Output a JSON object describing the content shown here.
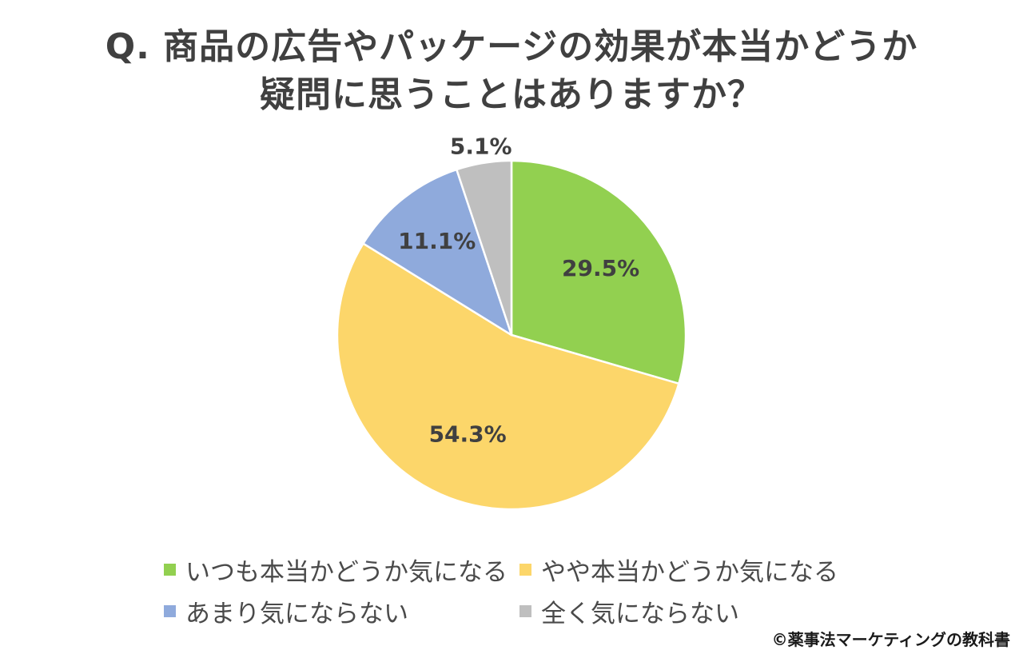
{
  "title": {
    "line1": "Q. 商品の広告やパッケージの効果が本当かどうか",
    "line2": "疑問に思うことはありますか？"
  },
  "chart_data": {
    "type": "pie",
    "title": "Q. 商品の広告やパッケージの効果が本当かどうか 疑問に思うことはありますか？",
    "legend_position": "bottom",
    "slices": [
      {
        "label": "いつも本当かどうか気になる",
        "value": 29.5,
        "display": "29.5%",
        "color": "#92d050"
      },
      {
        "label": "やや本当かどうか気になる",
        "value": 54.3,
        "display": "54.3%",
        "color": "#fcd66a"
      },
      {
        "label": "あまり気にならない",
        "value": 11.1,
        "display": "11.1%",
        "color": "#8faadc"
      },
      {
        "label": "全く気にならない",
        "value": 5.1,
        "display": "5.1%",
        "color": "#bfbfbf"
      }
    ]
  },
  "credit": "©薬事法マーケティングの教科書"
}
